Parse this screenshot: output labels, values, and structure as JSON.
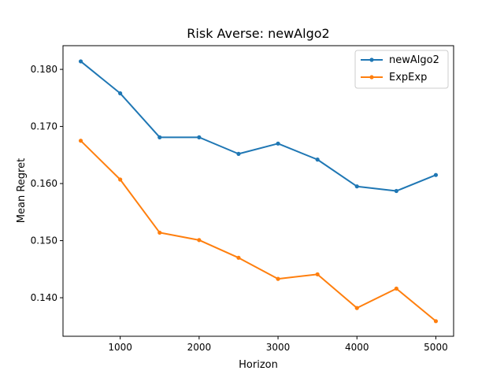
{
  "chart_data": {
    "type": "line",
    "title": "Risk Averse: newAlgo2",
    "xlabel": "Horizon",
    "ylabel": "Mean Regret",
    "x": [
      500,
      1000,
      1500,
      2000,
      2500,
      3000,
      3500,
      4000,
      4500,
      5000
    ],
    "series": [
      {
        "name": "newAlgo2",
        "color": "#1f77b4",
        "values": [
          0.1814,
          0.1758,
          0.1681,
          0.1681,
          0.1652,
          0.167,
          0.1642,
          0.1595,
          0.1587,
          0.1615
        ]
      },
      {
        "name": "ExpExp",
        "color": "#ff7f0e",
        "values": [
          0.1675,
          0.1607,
          0.1514,
          0.1501,
          0.147,
          0.1433,
          0.1441,
          0.1382,
          0.1416,
          0.1359
        ]
      }
    ],
    "xticks": [
      "1000",
      "2000",
      "3000",
      "4000",
      "5000"
    ],
    "yticks": [
      "0.140",
      "0.150",
      "0.160",
      "0.170",
      "0.180"
    ],
    "xlim": [
      275,
      5225
    ],
    "ylim": [
      0.13325,
      0.18415
    ],
    "grid": false,
    "legend_position": "top-right",
    "marker": "dot"
  }
}
